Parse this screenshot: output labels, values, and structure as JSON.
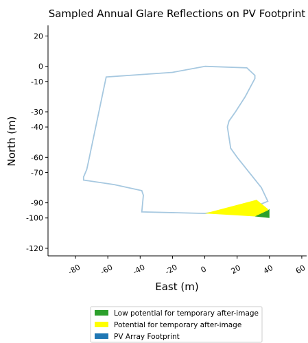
{
  "chart_data": {
    "type": "area",
    "title": "Sampled Annual Glare Reflections on PV Footprint",
    "xlabel": "East (m)",
    "ylabel": "North (m)",
    "xlim": [
      -97,
      63
    ],
    "ylim": [
      -125,
      27
    ],
    "x_ticks": [
      -80,
      -60,
      -40,
      -20,
      0,
      20,
      40,
      60
    ],
    "y_ticks": [
      20,
      0,
      -10,
      -30,
      -40,
      -60,
      -70,
      -90,
      -100,
      -120
    ],
    "x_tick_labels": [
      "-80",
      "-60",
      "-40",
      "-20",
      "0",
      "20",
      "40",
      "60"
    ],
    "y_tick_labels": [
      "20",
      "0",
      "-10",
      "-30",
      "-40",
      "-60",
      "-70",
      "-90",
      "-100",
      "-120"
    ],
    "series": [
      {
        "name": "PV Array Footprint",
        "kind": "outline",
        "color": "#a6c8e0",
        "x": [
          0,
          26,
          31,
          31,
          25,
          19,
          15,
          14,
          15,
          16,
          20,
          35,
          39,
          32,
          0,
          -39,
          -38,
          -39,
          -56,
          -75,
          -75,
          -73,
          -72,
          -61,
          -61,
          -20,
          0
        ],
        "y": [
          0,
          -1,
          -6,
          -8,
          -20,
          -30,
          -36,
          -40,
          -47,
          -54,
          -60,
          -80,
          -89,
          -92,
          -97,
          -96,
          -85,
          -82,
          -78,
          -75,
          -73,
          -68,
          -63,
          -7,
          -7,
          -4,
          0
        ]
      },
      {
        "name": "Potential for temporary after-image",
        "kind": "fill",
        "color": "#ffff00",
        "x": [
          0,
          32,
          39,
          40,
          31,
          0
        ],
        "y": [
          -97,
          -88,
          -94,
          -98,
          -99,
          -97
        ]
      },
      {
        "name": "Low potential for temporary after-image",
        "kind": "fill",
        "color": "#2ca02c",
        "x": [
          31,
          39,
          40,
          40,
          31
        ],
        "y": [
          -99,
          -95,
          -94,
          -100,
          -99
        ]
      }
    ],
    "legend": {
      "placement": "bottom-center",
      "entries": [
        {
          "label": "Low potential for temporary after-image",
          "color": "#2ca02c"
        },
        {
          "label": "Potential for temporary after-image",
          "color": "#ffff00"
        },
        {
          "label": "PV Array Footprint",
          "color": "#1f77b4"
        }
      ]
    },
    "grid": false
  }
}
